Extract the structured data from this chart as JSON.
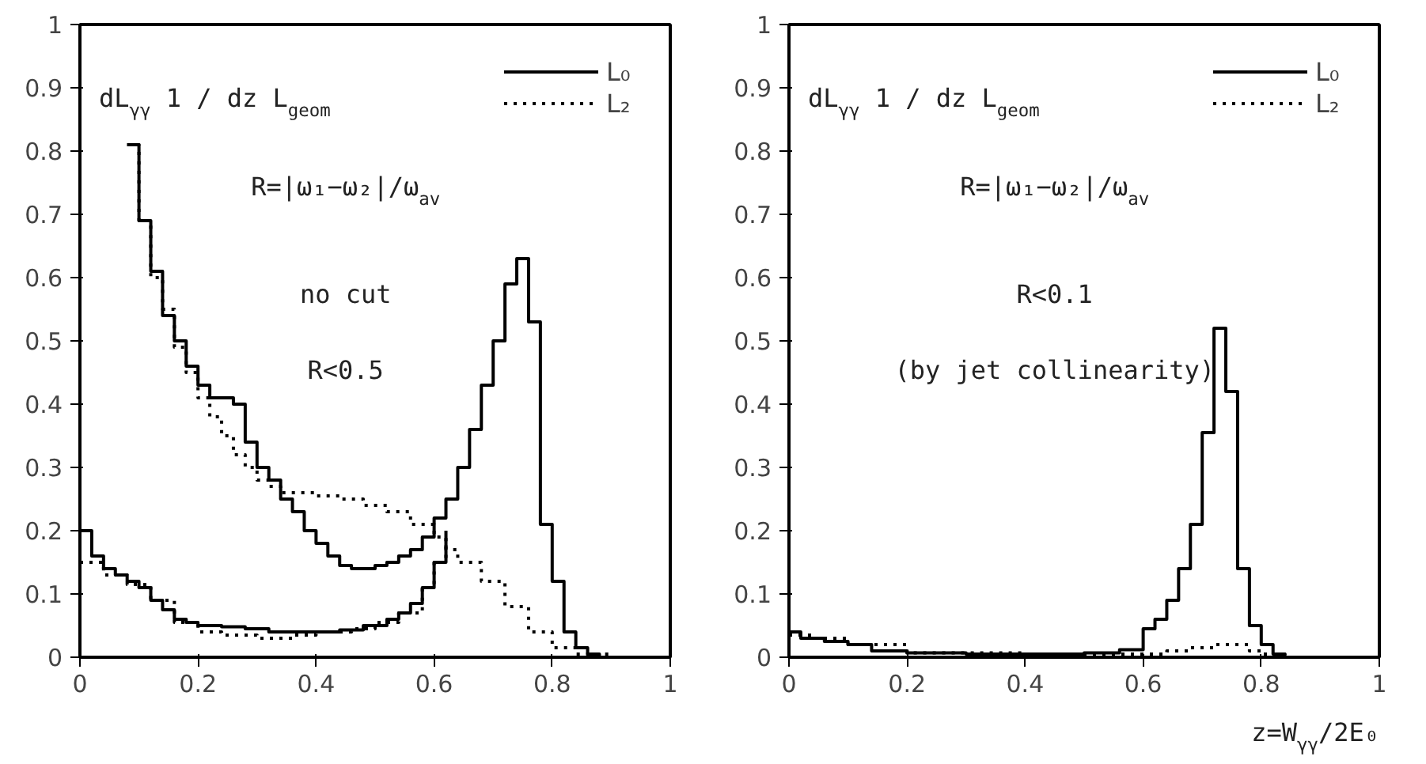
{
  "chart_data": [
    {
      "type": "step",
      "xlim": [
        0,
        1
      ],
      "ylim": [
        0,
        1
      ],
      "xticks": [
        0,
        0.2,
        0.4,
        0.6,
        0.8,
        1
      ],
      "yticks": [
        0,
        0.1,
        0.2,
        0.3,
        0.4,
        0.5,
        0.6,
        0.7,
        0.8,
        0.9,
        1
      ],
      "legend": "top right",
      "grid": false,
      "annotations": [
        "dL$_{γγ}$ 1 / dz L$_{geom}$",
        "R=|ω₁−ω₂|/ω$_{av}$",
        "no cut",
        "R<0.5"
      ],
      "series": [
        {
          "name": "L₀",
          "color": "#000000",
          "line_style": "solid",
          "x": [
            0.08,
            0.1,
            0.12,
            0.14,
            0.16,
            0.18,
            0.2,
            0.22,
            0.24,
            0.26,
            0.28,
            0.3,
            0.32,
            0.34,
            0.36,
            0.38,
            0.4,
            0.42,
            0.44,
            0.46,
            0.48,
            0.5,
            0.52,
            0.54,
            0.56,
            0.58,
            0.6,
            0.62,
            0.64,
            0.66,
            0.68,
            0.7,
            0.72,
            0.74,
            0.76,
            0.78,
            0.8,
            0.82,
            0.84,
            0.86,
            0.88,
            1
          ],
          "values": [
            0.81,
            0.69,
            0.61,
            0.54,
            0.5,
            0.46,
            0.43,
            0.41,
            0.41,
            0.4,
            0.34,
            0.3,
            0.28,
            0.25,
            0.23,
            0.2,
            0.18,
            0.16,
            0.145,
            0.14,
            0.14,
            0.145,
            0.15,
            0.16,
            0.17,
            0.19,
            0.22,
            0.25,
            0.3,
            0.36,
            0.43,
            0.5,
            0.59,
            0.63,
            0.53,
            0.21,
            0.12,
            0.04,
            0.015,
            0.005,
            0,
            0
          ]
        },
        {
          "name": "L₂",
          "color": "#000000",
          "line_style": "dotted",
          "x": [
            0.08,
            0.1,
            0.12,
            0.14,
            0.16,
            0.18,
            0.2,
            0.22,
            0.24,
            0.26,
            0.28,
            0.3,
            0.32,
            0.34,
            0.4,
            0.44,
            0.48,
            0.52,
            0.56,
            0.6,
            0.62,
            0.64,
            0.68,
            0.72,
            0.76,
            0.8,
            0.84,
            0.9,
            1
          ],
          "values": [
            0.81,
            0.69,
            0.6,
            0.55,
            0.49,
            0.45,
            0.41,
            0.38,
            0.35,
            0.32,
            0.3,
            0.28,
            0.27,
            0.26,
            0.255,
            0.25,
            0.24,
            0.23,
            0.21,
            0.19,
            0.17,
            0.15,
            0.12,
            0.08,
            0.04,
            0.015,
            0.005,
            0,
            0
          ]
        },
        {
          "color": "#000000",
          "line_style": "solid",
          "x": [
            0,
            0.02,
            0.04,
            0.06,
            0.08,
            0.1,
            0.12,
            0.14,
            0.16,
            0.18,
            0.2,
            0.24,
            0.28,
            0.32,
            0.36,
            0.4,
            0.44,
            0.48,
            0.52,
            0.54,
            0.56,
            0.58,
            0.6,
            0.62
          ],
          "values": [
            0.2,
            0.16,
            0.14,
            0.13,
            0.12,
            0.11,
            0.09,
            0.075,
            0.06,
            0.055,
            0.05,
            0.048,
            0.045,
            0.04,
            0.04,
            0.04,
            0.043,
            0.05,
            0.06,
            0.07,
            0.085,
            0.11,
            0.15,
            0.2
          ]
        },
        {
          "color": "#000000",
          "line_style": "dotted",
          "x": [
            0,
            0.04,
            0.08,
            0.12,
            0.16,
            0.2,
            0.24,
            0.3,
            0.36,
            0.4,
            0.46,
            0.5,
            0.54,
            0.58,
            0.6,
            0.62
          ],
          "values": [
            0.15,
            0.13,
            0.115,
            0.09,
            0.055,
            0.04,
            0.035,
            0.03,
            0.035,
            0.04,
            0.045,
            0.055,
            0.07,
            0.11,
            0.15,
            0.18
          ]
        }
      ]
    },
    {
      "type": "step",
      "xlabel": "z=W$_{γγ}$/2E₀",
      "xlim": [
        0,
        1
      ],
      "ylim": [
        0,
        1
      ],
      "xticks": [
        0,
        0.2,
        0.4,
        0.6,
        0.8,
        1
      ],
      "yticks": [
        0,
        0.1,
        0.2,
        0.3,
        0.4,
        0.5,
        0.6,
        0.7,
        0.8,
        0.9,
        1
      ],
      "legend": "top right",
      "grid": false,
      "annotations": [
        "dL$_{γγ}$ 1 / dz L$_{geom}$",
        "R=|ω₁−ω₂|/ω$_{av}$",
        "R<0.1",
        "(by jet collinearity)"
      ],
      "series": [
        {
          "name": "L₀",
          "color": "#000000",
          "line_style": "solid",
          "x": [
            0,
            0.02,
            0.06,
            0.1,
            0.14,
            0.2,
            0.3,
            0.4,
            0.5,
            0.56,
            0.6,
            0.62,
            0.64,
            0.66,
            0.68,
            0.7,
            0.72,
            0.74,
            0.76,
            0.78,
            0.8,
            0.82,
            0.84,
            1
          ],
          "values": [
            0.04,
            0.03,
            0.025,
            0.02,
            0.01,
            0.007,
            0.005,
            0.005,
            0.007,
            0.012,
            0.045,
            0.06,
            0.09,
            0.14,
            0.21,
            0.355,
            0.52,
            0.42,
            0.14,
            0.05,
            0.02,
            0.005,
            0,
            0
          ]
        },
        {
          "name": "L₂",
          "color": "#000000",
          "line_style": "dotted",
          "x": [
            0,
            0.04,
            0.1,
            0.2,
            0.4,
            0.6,
            0.64,
            0.68,
            0.72,
            0.76,
            0.78,
            0.8,
            0.84,
            1
          ],
          "values": [
            0.035,
            0.03,
            0.02,
            0.007,
            0.005,
            0.005,
            0.01,
            0.015,
            0.02,
            0.02,
            0.01,
            0.005,
            0,
            0
          ]
        }
      ]
    }
  ]
}
